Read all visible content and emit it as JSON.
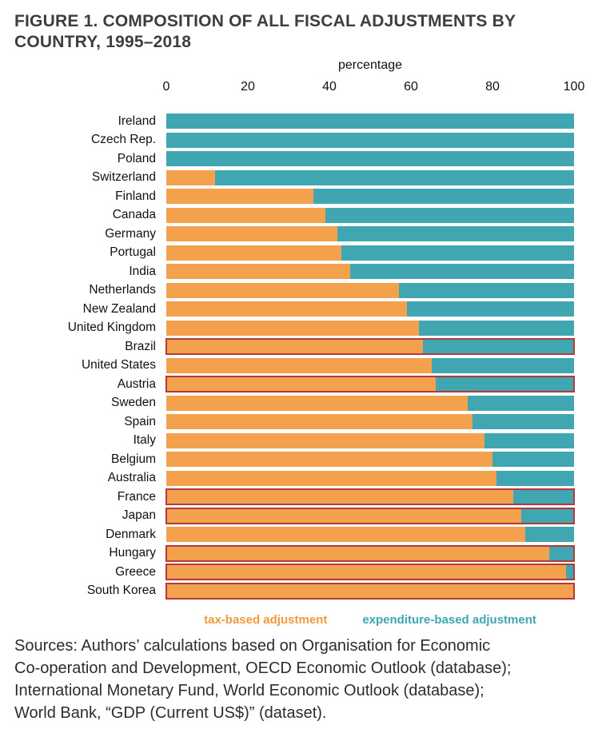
{
  "title": "FIGURE 1. COMPOSITION OF ALL FISCAL ADJUSTMENTS BY\nCOUNTRY, 1995–2018",
  "chart_data": {
    "type": "bar",
    "orientation": "horizontal",
    "stacked": true,
    "axis_label": "percentage",
    "x_ticks": [
      0,
      20,
      40,
      60,
      80,
      100
    ],
    "xlim": [
      0,
      100
    ],
    "grid": false,
    "legend_position": "bottom",
    "categories": [
      "Ireland",
      "Czech Rep.",
      "Poland",
      "Switzerland",
      "Finland",
      "Canada",
      "Germany",
      "Portugal",
      "India",
      "Netherlands",
      "New Zealand",
      "United Kingdom",
      "Brazil",
      "United States",
      "Austria",
      "Sweden",
      "Spain",
      "Italy",
      "Belgium",
      "Australia",
      "France",
      "Japan",
      "Denmark",
      "Hungary",
      "Greece",
      "South Korea"
    ],
    "series": [
      {
        "name": "tax-based adjustment",
        "color": "#F4A14D",
        "values": [
          0,
          0,
          0,
          12,
          36,
          39,
          42,
          43,
          45,
          57,
          59,
          62,
          63,
          65,
          66,
          74,
          75,
          78,
          80,
          81,
          85,
          87,
          88,
          94,
          98,
          100
        ]
      },
      {
        "name": "expenditure-based adjustment",
        "color": "#3FA6B2",
        "values": [
          100,
          100,
          100,
          88,
          64,
          61,
          58,
          57,
          55,
          43,
          41,
          38,
          37,
          35,
          34,
          26,
          25,
          22,
          20,
          19,
          15,
          13,
          12,
          6,
          2,
          0
        ]
      }
    ],
    "highlighted": [
      "Brazil",
      "Austria",
      "France",
      "Japan",
      "Hungary",
      "Greece",
      "South Korea"
    ],
    "highlight_color": "#B03A3C"
  },
  "legend": [
    {
      "label": "tax-based adjustment",
      "color": "#F09A3E"
    },
    {
      "label": "expenditure-based adjustment",
      "color": "#3FA6B2"
    }
  ],
  "sources": "Sources: Authors’ calculations based on Organisation for Economic\nCo-operation and Development, OECD Economic Outlook (database);\nInternational Monetary Fund, World Economic Outlook (database);\nWorld Bank, “GDP (Current US$)” (dataset)."
}
